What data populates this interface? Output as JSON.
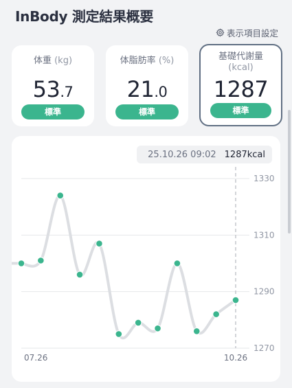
{
  "header": {
    "title": "InBody 測定結果概要"
  },
  "settings": {
    "label": "表示項目設定",
    "icon": "gear-icon"
  },
  "cards": [
    {
      "name": "weight",
      "label": "体重",
      "unit": "(kg)",
      "value_int": "53",
      "value_dec": ".7",
      "status": "標準",
      "selected": false
    },
    {
      "name": "body-fat",
      "label": "体脂肪率",
      "unit": "(%)",
      "value_int": "21",
      "value_dec": ".0",
      "status": "標準",
      "selected": false
    },
    {
      "name": "bmr",
      "label": "基礎代謝量",
      "unit": "(kcal)",
      "value_int": "1287",
      "value_dec": "",
      "status": "標準",
      "selected": true
    }
  ],
  "tooltip": {
    "date": "25.10.26 09:02",
    "value": "1287kcal"
  },
  "colors": {
    "accent": "#3bb58e",
    "line": "#dcdee2"
  },
  "chart_data": {
    "type": "line",
    "x_labels": [
      "07.26",
      "10.26"
    ],
    "values": [
      1300,
      1301,
      1324,
      1296,
      1307,
      1275,
      1279,
      1277,
      1300,
      1276,
      1282,
      1287
    ],
    "yticks": [
      1270,
      1290,
      1310,
      1330
    ],
    "ylim": [
      1270,
      1330
    ],
    "title": "",
    "xlabel": "",
    "ylabel": ""
  }
}
